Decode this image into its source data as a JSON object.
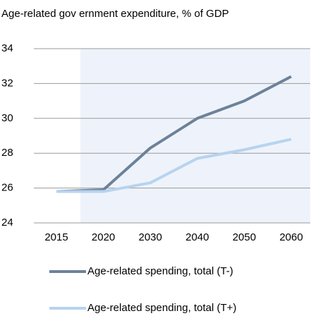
{
  "chart_data": {
    "type": "line",
    "title": "Age-related gov ernment expenditure, % of GDP",
    "categories": [
      "2015",
      "2020",
      "2030",
      "2040",
      "2050",
      "2060"
    ],
    "series": [
      {
        "name": "Age-related spending, total (T-)",
        "color": "#6d8299",
        "values": [
          25.8,
          25.9,
          28.3,
          30.0,
          31.0,
          32.4
        ]
      },
      {
        "name": "Age-related spending, total (T+)",
        "color": "#b7d3ef",
        "values": [
          25.8,
          25.8,
          26.3,
          27.7,
          28.2,
          28.8
        ]
      }
    ],
    "ylim": [
      24,
      34
    ],
    "yticks": [
      24,
      26,
      28,
      30,
      32,
      34
    ],
    "grid": true
  }
}
